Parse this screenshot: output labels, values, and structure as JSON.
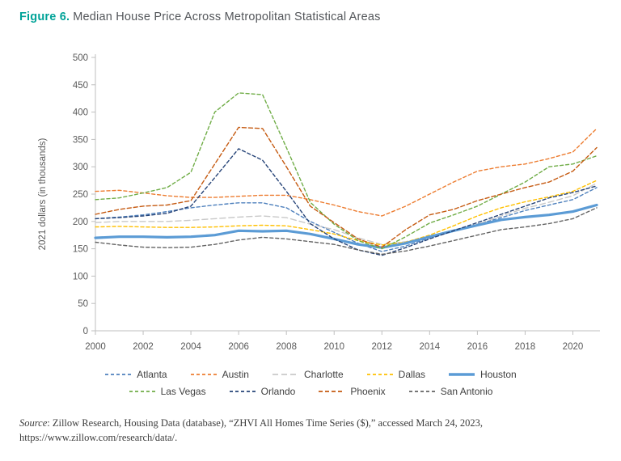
{
  "title": {
    "figure_label": "Figure 6.",
    "text": "Median House Price Across Metropolitan Statistical Areas"
  },
  "source": {
    "label": "Source",
    "text": ": Zillow Research, Housing Data (database), “ZHVI All Homes Time Series ($),” accessed March 24, 2023, https://www.zillow.com/research/data/."
  },
  "colors": {
    "accent_teal": "#00a398",
    "axis_line": "#bfbfbf",
    "tick_text": "#595959"
  },
  "chart_data": {
    "type": "line",
    "title": "Median House Price Across Metropolitan Statistical Areas",
    "xlabel": "",
    "ylabel": "2021 dollars (in thousands)",
    "ylim": [
      0,
      500
    ],
    "yticks": [
      0,
      50,
      100,
      150,
      200,
      250,
      300,
      350,
      400,
      450,
      500
    ],
    "xticks": [
      2000,
      2002,
      2004,
      2006,
      2008,
      2010,
      2012,
      2014,
      2016,
      2018,
      2020
    ],
    "grid": false,
    "legend_position": "bottom",
    "x": [
      2000,
      2001,
      2002,
      2003,
      2004,
      2005,
      2006,
      2007,
      2008,
      2009,
      2010,
      2011,
      2012,
      2013,
      2014,
      2015,
      2016,
      2017,
      2018,
      2019,
      2020,
      2021
    ],
    "series": [
      {
        "name": "Atlanta",
        "color": "#4f81bd",
        "dash": "4 3",
        "width": 1.4,
        "values": [
          205,
          208,
          212,
          218,
          225,
          230,
          234,
          234,
          225,
          200,
          180,
          160,
          145,
          155,
          170,
          182,
          195,
          207,
          220,
          230,
          240,
          262
        ]
      },
      {
        "name": "Austin",
        "color": "#ed7d31",
        "dash": "4 3",
        "width": 1.4,
        "values": [
          255,
          257,
          252,
          247,
          244,
          244,
          246,
          248,
          248,
          240,
          230,
          218,
          210,
          228,
          250,
          272,
          292,
          300,
          305,
          315,
          327,
          370
        ]
      },
      {
        "name": "Charlotte",
        "color": "#c9c9c9",
        "dash": "7 4",
        "width": 1.4,
        "values": [
          198,
          200,
          200,
          200,
          202,
          205,
          208,
          210,
          207,
          195,
          185,
          170,
          158,
          163,
          172,
          182,
          195,
          210,
          224,
          235,
          247,
          270
        ]
      },
      {
        "name": "Dallas",
        "color": "#ffc000",
        "dash": "4 3",
        "width": 1.4,
        "values": [
          190,
          191,
          190,
          189,
          189,
          190,
          192,
          193,
          192,
          185,
          177,
          165,
          157,
          162,
          175,
          192,
          210,
          225,
          236,
          245,
          255,
          275
        ]
      },
      {
        "name": "Houston",
        "color": "#5b9bd5",
        "dash": "",
        "width": 3.2,
        "values": [
          170,
          172,
          172,
          171,
          172,
          175,
          183,
          182,
          183,
          177,
          168,
          158,
          152,
          160,
          172,
          183,
          193,
          203,
          208,
          212,
          218,
          230
        ]
      },
      {
        "name": "Las Vegas",
        "color": "#70ad47",
        "dash": "4 3",
        "width": 1.4,
        "values": [
          240,
          243,
          252,
          262,
          290,
          400,
          435,
          432,
          335,
          235,
          195,
          165,
          150,
          172,
          197,
          212,
          228,
          250,
          272,
          300,
          305,
          320
        ]
      },
      {
        "name": "Orlando",
        "color": "#264478",
        "dash": "4 3",
        "width": 1.4,
        "values": [
          205,
          207,
          210,
          215,
          228,
          280,
          333,
          312,
          255,
          196,
          168,
          148,
          138,
          152,
          168,
          183,
          198,
          213,
          228,
          243,
          253,
          265
        ]
      },
      {
        "name": "Phoenix",
        "color": "#c55a11",
        "dash": "5 3",
        "width": 1.4,
        "values": [
          213,
          222,
          228,
          230,
          238,
          305,
          372,
          370,
          300,
          228,
          198,
          168,
          153,
          185,
          212,
          222,
          238,
          250,
          262,
          272,
          292,
          335
        ]
      },
      {
        "name": "San Antonio",
        "color": "#636363",
        "dash": "4 3",
        "width": 1.4,
        "values": [
          162,
          157,
          153,
          152,
          153,
          158,
          166,
          171,
          168,
          163,
          158,
          148,
          140,
          146,
          155,
          165,
          175,
          185,
          190,
          196,
          205,
          225
        ]
      }
    ],
    "legend_rows": [
      [
        "Atlanta",
        "Austin",
        "Charlotte",
        "Dallas",
        "Houston"
      ],
      [
        "Las Vegas",
        "Orlando",
        "Phoenix",
        "San Antonio"
      ]
    ]
  }
}
